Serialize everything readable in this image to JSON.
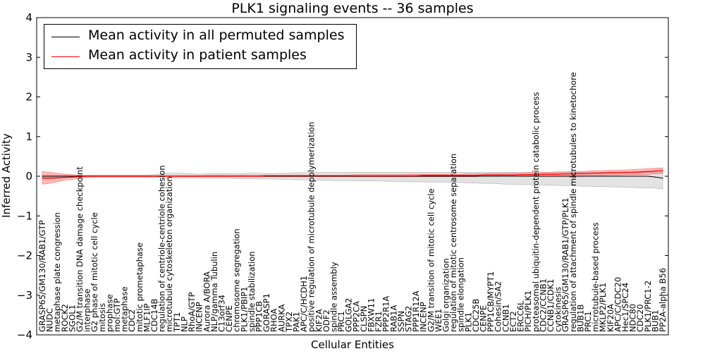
{
  "chart_data": {
    "type": "line",
    "title": "PLK1 signaling events -- 36 samples",
    "xlabel": "Cellular Entities",
    "ylabel": "Inferred Activity",
    "ylim": [
      -4,
      4
    ],
    "yticks": [
      -4,
      -3,
      -2,
      -1,
      0,
      1,
      2,
      3,
      4
    ],
    "legend_position": "top-left",
    "categories": [
      "GRASP65/GM130/RAB1/GTP",
      "NUDC",
      "metaphase plate congression",
      "ROCK2",
      "SGOL1",
      "G2/M transition DNA damage checkpoint",
      "interphase",
      "G2 phase of mitotic cell cycle",
      "mitosis",
      "prophase",
      "mol:GTP",
      "metaphase",
      "CDC2",
      "mitotic prometaphase",
      "MLF1IP",
      "CDC14B",
      "regulation of centriole-centriole cohesion",
      "microtubule cytoskeleton organization",
      "TPT1",
      "NLP",
      "RhoA/GTP",
      "INCENP",
      "Aurora A/BORA",
      "NLP/gamma Tubulin",
      "C13orf34",
      "CENPE",
      "chromosome segregation",
      "PLK1/PBIP1",
      "spindle stabilization",
      "PPP1CB",
      "GORASP1",
      "RHOA",
      "AURKA",
      "TPX2",
      "PAK1",
      "APC/C/HCDH1",
      "positive regulation of microtubule depolymerization",
      "KIF2A",
      "ODF2",
      "spindle assembly",
      "PRC1",
      "GOLGA2",
      "PPP2CA",
      "CLSPN",
      "FBXW11",
      "FZR1",
      "PPP2R1A",
      "RAB1A",
      "SSPN",
      "STAG2",
      "PPP1R12A",
      "INCENP",
      "G2/M transition of mitotic cell cycle",
      "WEE1",
      "Golgi organization",
      "regulation of mitotic centrosome separation",
      "spindle elongation",
      "PLK1",
      "CDC25B",
      "CENPE",
      "PPP1CB/MYPT1",
      "Cohesin/SA2",
      "CCNB1",
      "ECT2",
      "ERCC6L",
      "PICH/PLK1",
      "proteasomal ubiquitin-dependent protein catabolic process",
      "CDC2/CCNB1",
      "CCNB1/CDK1",
      "cytokinesis",
      "GRASP65/GM130/RAB1/GTP/PLK1",
      "regulation of attachment of spindle microtubules to kinetochore",
      "BUB1B",
      "PRC1",
      "microtubule-based process",
      "MKLP2/PLK1",
      "KIF20A",
      "APC/C/CDC20",
      "Hec1/SPC24",
      "NDC80",
      "CDC20",
      "PLK1/PRC1-2",
      "BUB1",
      "PP2A-alpha B56"
    ],
    "series": [
      {
        "name": "Mean activity in all permuted samples",
        "color": "#000000",
        "values": [
          0.0,
          0.0,
          0.0,
          0.0,
          0.0,
          0.0,
          0.0,
          0.0,
          0.0,
          0.0,
          0.0,
          0.0,
          0.0,
          0.0,
          0.0,
          0.0,
          0.0,
          0.0,
          0.0,
          0.0,
          0.0,
          0.0,
          0.0,
          0.0,
          0.0,
          0.0,
          0.0,
          0.0,
          0.0,
          0.0,
          0.0,
          0.0,
          0.0,
          0.0,
          0.0,
          0.0,
          0.0,
          0.0,
          0.0,
          0.0,
          0.0,
          0.0,
          0.0,
          0.0,
          0.0,
          0.0,
          0.0,
          0.0,
          0.0,
          0.0,
          0.0,
          0.0,
          0.0,
          0.0,
          0.0,
          0.0,
          0.0,
          0.0,
          0.0,
          0.0,
          0.0,
          0.0,
          0.0,
          0.0,
          0.0,
          0.0,
          0.0,
          0.0,
          0.0,
          0.0,
          0.0,
          0.0,
          0.0,
          0.0,
          0.0,
          0.0,
          0.0,
          0.0,
          0.0,
          0.0,
          0.0,
          0.0,
          -0.02,
          -0.05
        ],
        "lower": [
          -0.03,
          -0.03,
          -0.03,
          -0.03,
          -0.03,
          -0.03,
          -0.03,
          -0.03,
          -0.03,
          -0.03,
          -0.03,
          -0.03,
          -0.03,
          -0.03,
          -0.03,
          -0.03,
          -0.04,
          -0.04,
          -0.04,
          -0.04,
          -0.04,
          -0.04,
          -0.05,
          -0.05,
          -0.05,
          -0.05,
          -0.06,
          -0.06,
          -0.06,
          -0.07,
          -0.07,
          -0.07,
          -0.08,
          -0.08,
          -0.09,
          -0.09,
          -0.1,
          -0.1,
          -0.1,
          -0.11,
          -0.11,
          -0.11,
          -0.12,
          -0.12,
          -0.12,
          -0.12,
          -0.13,
          -0.13,
          -0.13,
          -0.14,
          -0.14,
          -0.14,
          -0.15,
          -0.15,
          -0.15,
          -0.16,
          -0.16,
          -0.17,
          -0.17,
          -0.18,
          -0.18,
          -0.19,
          -0.2,
          -0.2,
          -0.21,
          -0.21,
          -0.22,
          -0.22,
          -0.23,
          -0.23,
          -0.24,
          -0.24,
          -0.25,
          -0.25,
          -0.26,
          -0.26,
          -0.27,
          -0.27,
          -0.28,
          -0.28,
          -0.29,
          -0.29,
          -0.3,
          -0.32
        ],
        "upper": [
          0.03,
          0.03,
          0.03,
          0.03,
          0.03,
          0.03,
          0.03,
          0.03,
          0.03,
          0.03,
          0.03,
          0.03,
          0.03,
          0.03,
          0.03,
          0.04,
          0.06,
          0.08,
          0.08,
          0.07,
          0.06,
          0.05,
          0.06,
          0.07,
          0.07,
          0.06,
          0.06,
          0.07,
          0.08,
          0.08,
          0.07,
          0.07,
          0.08,
          0.08,
          0.09,
          0.09,
          0.1,
          0.1,
          0.1,
          0.1,
          0.1,
          0.1,
          0.1,
          0.1,
          0.1,
          0.1,
          0.1,
          0.1,
          0.1,
          0.1,
          0.1,
          0.1,
          0.1,
          0.1,
          0.1,
          0.1,
          0.1,
          0.1,
          0.1,
          0.1,
          0.1,
          0.1,
          0.1,
          0.1,
          0.1,
          0.1,
          0.1,
          0.1,
          0.1,
          0.1,
          0.1,
          0.1,
          0.1,
          0.1,
          0.1,
          0.1,
          0.1,
          0.1,
          0.1,
          0.1,
          0.1,
          0.1,
          0.1,
          0.1
        ]
      },
      {
        "name": "Mean activity in patient samples",
        "color": "#ff0000",
        "values": [
          -0.05,
          -0.05,
          -0.04,
          -0.03,
          -0.02,
          -0.01,
          0.0,
          0.0,
          0.0,
          0.0,
          0.0,
          0.0,
          0.0,
          0.0,
          0.0,
          0.0,
          0.0,
          0.0,
          0.0,
          0.0,
          0.0,
          0.0,
          0.0,
          0.0,
          0.0,
          0.0,
          0.0,
          0.0,
          0.0,
          0.0,
          0.01,
          0.01,
          0.01,
          0.01,
          0.01,
          0.01,
          0.01,
          0.01,
          0.01,
          0.01,
          0.01,
          0.01,
          0.01,
          0.01,
          0.01,
          0.01,
          0.01,
          0.01,
          0.01,
          0.01,
          0.01,
          0.02,
          0.02,
          0.02,
          0.02,
          0.02,
          0.02,
          0.02,
          0.02,
          0.03,
          0.03,
          0.03,
          0.03,
          0.03,
          0.04,
          0.04,
          0.04,
          0.05,
          0.05,
          0.05,
          0.06,
          0.06,
          0.07,
          0.07,
          0.08,
          0.08,
          0.09,
          0.09,
          0.1,
          0.1,
          0.11,
          0.12,
          0.13,
          0.14
        ],
        "lower": [
          -0.2,
          -0.18,
          -0.14,
          -0.1,
          -0.08,
          -0.05,
          -0.02,
          -0.01,
          -0.01,
          -0.01,
          -0.01,
          -0.01,
          -0.01,
          -0.01,
          -0.01,
          -0.01,
          -0.01,
          -0.01,
          -0.01,
          -0.01,
          -0.01,
          -0.01,
          -0.01,
          -0.01,
          -0.01,
          -0.01,
          -0.01,
          -0.01,
          -0.01,
          -0.01,
          -0.01,
          -0.01,
          -0.01,
          -0.01,
          -0.01,
          -0.01,
          -0.01,
          -0.01,
          -0.01,
          -0.01,
          -0.01,
          -0.01,
          -0.01,
          -0.01,
          -0.01,
          -0.01,
          -0.01,
          -0.01,
          -0.01,
          -0.01,
          -0.01,
          -0.01,
          -0.01,
          -0.01,
          -0.01,
          -0.01,
          -0.01,
          -0.01,
          -0.01,
          0.0,
          0.0,
          0.0,
          0.0,
          0.0,
          0.0,
          0.0,
          0.0,
          0.0,
          0.01,
          0.01,
          0.01,
          0.01,
          0.02,
          0.02,
          0.02,
          0.02,
          0.03,
          0.03,
          0.04,
          0.04,
          0.04,
          0.05,
          0.06,
          0.07
        ],
        "upper": [
          0.12,
          0.1,
          0.08,
          0.05,
          0.04,
          0.02,
          0.02,
          0.02,
          0.02,
          0.02,
          0.02,
          0.02,
          0.02,
          0.02,
          0.02,
          0.02,
          0.02,
          0.02,
          0.02,
          0.02,
          0.02,
          0.02,
          0.03,
          0.03,
          0.03,
          0.03,
          0.03,
          0.03,
          0.03,
          0.03,
          0.03,
          0.03,
          0.03,
          0.03,
          0.03,
          0.03,
          0.03,
          0.03,
          0.03,
          0.03,
          0.03,
          0.03,
          0.04,
          0.04,
          0.04,
          0.04,
          0.04,
          0.04,
          0.04,
          0.05,
          0.05,
          0.05,
          0.05,
          0.05,
          0.05,
          0.05,
          0.05,
          0.06,
          0.06,
          0.06,
          0.07,
          0.07,
          0.07,
          0.08,
          0.08,
          0.09,
          0.09,
          0.1,
          0.1,
          0.11,
          0.11,
          0.12,
          0.12,
          0.13,
          0.14,
          0.14,
          0.15,
          0.15,
          0.16,
          0.17,
          0.18,
          0.19,
          0.2,
          0.21
        ]
      }
    ]
  }
}
